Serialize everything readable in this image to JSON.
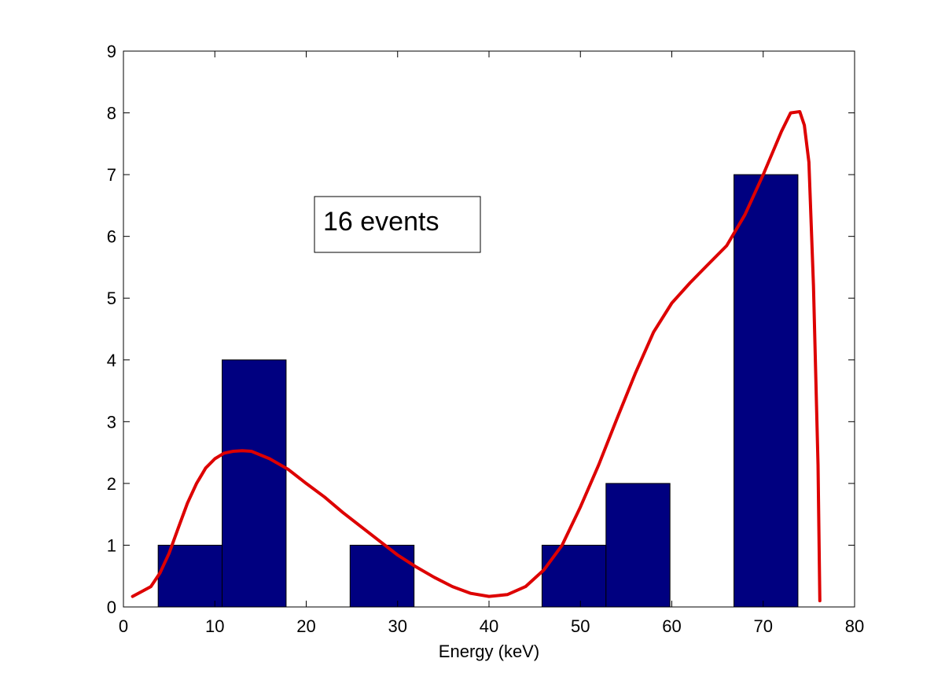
{
  "chart_data": {
    "type": "bar",
    "xlabel": "Energy (keV)",
    "ylabel": "",
    "xlim": [
      0,
      80
    ],
    "ylim": [
      0,
      9
    ],
    "xticks": [
      0,
      10,
      20,
      30,
      40,
      50,
      60,
      70,
      80
    ],
    "yticks": [
      0,
      1,
      2,
      3,
      4,
      5,
      6,
      7,
      8,
      9
    ],
    "grid": false,
    "bins": [
      {
        "x0": 3.8,
        "x1": 10.8,
        "count": 1
      },
      {
        "x0": 10.8,
        "x1": 17.8,
        "count": 4
      },
      {
        "x0": 24.8,
        "x1": 31.8,
        "count": 1
      },
      {
        "x0": 45.8,
        "x1": 52.8,
        "count": 1
      },
      {
        "x0": 52.8,
        "x1": 59.8,
        "count": 2
      },
      {
        "x0": 66.8,
        "x1": 73.8,
        "count": 7
      }
    ],
    "curve": {
      "x": [
        1,
        2,
        3,
        4,
        5,
        6,
        7,
        8,
        9,
        10,
        11,
        12,
        13,
        14,
        16,
        18,
        20,
        22,
        24,
        26,
        28,
        30,
        32,
        34,
        36,
        38,
        40,
        42,
        44,
        46,
        48,
        50,
        52,
        54,
        56,
        58,
        60,
        62,
        64,
        66,
        68,
        70,
        72,
        73,
        74,
        74.5,
        75,
        75.5,
        76,
        76.2
      ],
      "y": [
        0.17,
        0.25,
        0.33,
        0.55,
        0.87,
        1.28,
        1.68,
        2.0,
        2.25,
        2.4,
        2.49,
        2.52,
        2.53,
        2.52,
        2.4,
        2.23,
        2.0,
        1.78,
        1.53,
        1.3,
        1.07,
        0.84,
        0.65,
        0.48,
        0.33,
        0.22,
        0.17,
        0.2,
        0.33,
        0.6,
        1.0,
        1.62,
        2.3,
        3.05,
        3.78,
        4.45,
        4.92,
        5.25,
        5.55,
        5.85,
        6.35,
        7.0,
        7.7,
        8.0,
        8.02,
        7.8,
        7.2,
        5.2,
        2.3,
        0.1
      ],
      "color": "#dd0000"
    },
    "bar_color": "#000080",
    "annotation": "16 events"
  }
}
